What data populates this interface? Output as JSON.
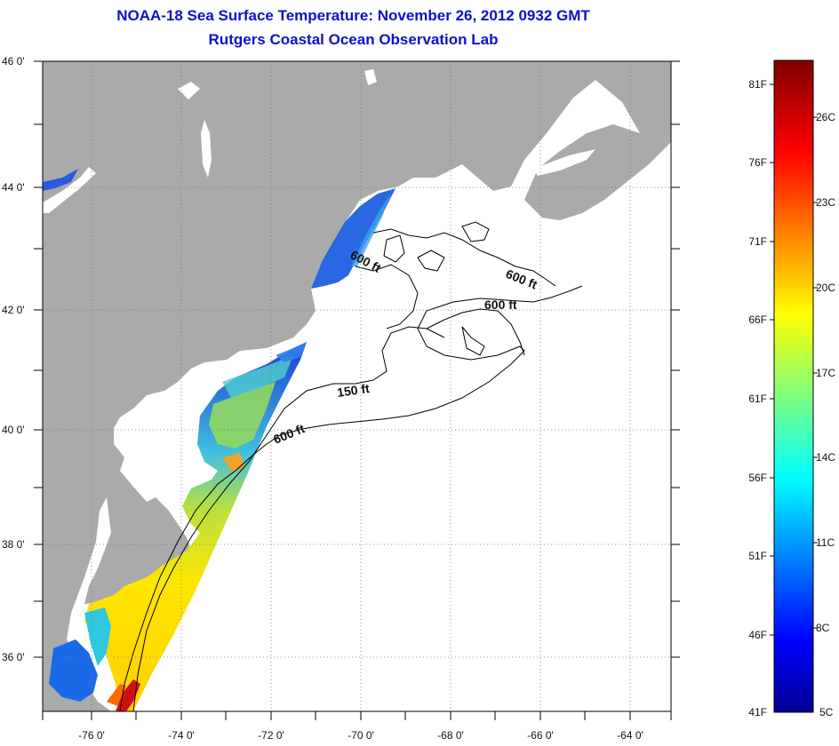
{
  "header": {
    "title": "NOAA-18 Sea Surface Temperature:  November 26, 2012 0932 GMT",
    "subtitle": "Rutgers Coastal Ocean Observation Lab"
  },
  "map": {
    "lon_range": [
      -77,
      -63
    ],
    "lat_range": [
      35,
      46
    ],
    "lon_ticks": [
      "-76 0'",
      "-74 0'",
      "-72 0'",
      "-70 0'",
      "-68 0'",
      "-66 0'",
      "-64 0'"
    ],
    "lat_ticks": [
      "46 0'",
      "44 0'",
      "42 0'",
      "40 0'",
      "38 0'",
      "36 0'"
    ],
    "land_color": "#aaaaaa",
    "grid": "dotted",
    "contour_labels": [
      "600 ft",
      "600 ft",
      "600 ft",
      "150 ft",
      "600 ft"
    ]
  },
  "colorbar": {
    "fahrenheit_labels": [
      "81F",
      "76F",
      "71F",
      "66F",
      "61F",
      "56F",
      "51F",
      "46F",
      "41F"
    ],
    "celsius_labels": [
      "26C",
      "23C",
      "20C",
      "17C",
      "14C",
      "11C",
      "8C",
      "5C"
    ],
    "colormap": "jet",
    "min_c": 5,
    "max_c": 27.2
  }
}
